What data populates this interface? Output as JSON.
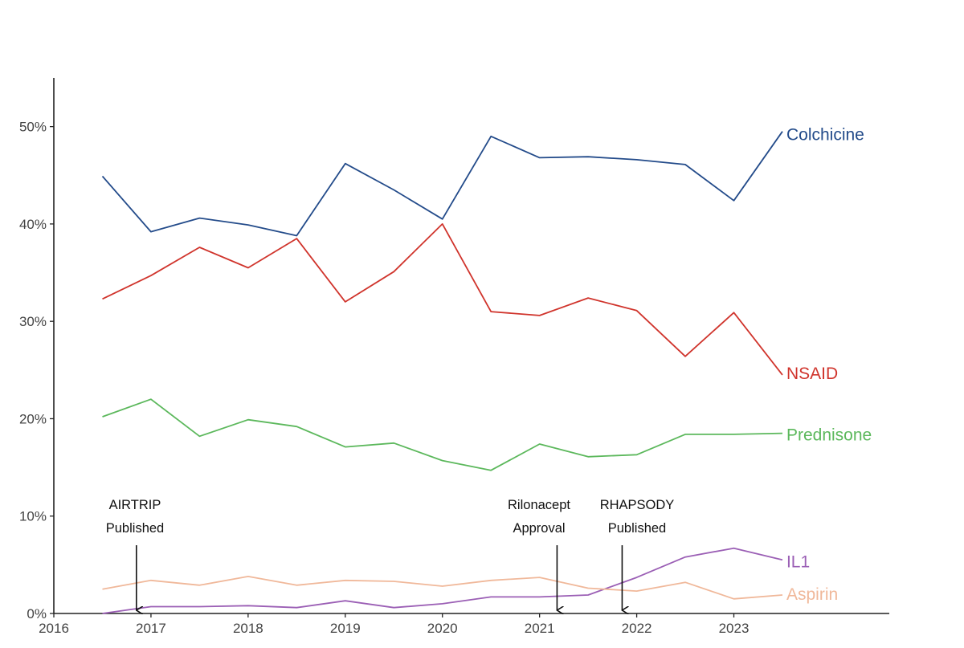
{
  "chart_data": {
    "type": "line",
    "title": "",
    "xlabel": "",
    "ylabel": "",
    "xlim": [
      2016,
      2024.6
    ],
    "ylim": [
      0,
      0.55
    ],
    "x_ticks": [
      2016,
      2017,
      2018,
      2019,
      2020,
      2021,
      2022,
      2023
    ],
    "x_tick_labels": [
      "2016",
      "2017",
      "2018",
      "2019",
      "2020",
      "2021",
      "2022",
      "2023"
    ],
    "y_ticks": [
      0,
      0.1,
      0.2,
      0.3,
      0.4,
      0.5
    ],
    "y_tick_labels": [
      "0%",
      "10%",
      "20%",
      "30%",
      "40%",
      "50%"
    ],
    "grid": false,
    "legend": "direct labels at right end of each line",
    "x": [
      2016.5,
      2017.0,
      2017.5,
      2018.0,
      2018.5,
      2019.0,
      2019.5,
      2020.0,
      2020.5,
      2021.0,
      2021.5,
      2022.0,
      2022.5,
      2023.0,
      2023.5
    ],
    "series": [
      {
        "name": "Colchicine",
        "color": "#234b8a",
        "values": [
          0.449,
          0.392,
          0.406,
          0.399,
          0.388,
          0.462,
          0.435,
          0.405,
          0.49,
          0.468,
          0.469,
          0.466,
          0.461,
          0.424,
          0.495
        ]
      },
      {
        "name": "NSAID",
        "color": "#d0342c",
        "values": [
          0.323,
          0.347,
          0.376,
          0.355,
          0.385,
          0.32,
          0.351,
          0.4,
          0.31,
          0.306,
          0.324,
          0.311,
          0.264,
          0.309,
          0.245
        ]
      },
      {
        "name": "Prednisone",
        "color": "#5cb85c",
        "values": [
          0.202,
          0.22,
          0.182,
          0.199,
          0.192,
          0.171,
          0.175,
          0.157,
          0.147,
          0.174,
          0.161,
          0.163,
          0.184,
          0.184,
          0.185
        ]
      },
      {
        "name": "IL1",
        "color": "#9b5fb5",
        "values": [
          0.0,
          0.007,
          0.007,
          0.008,
          0.006,
          0.013,
          0.006,
          0.01,
          0.017,
          0.017,
          0.019,
          0.037,
          0.058,
          0.067,
          0.055
        ]
      },
      {
        "name": "Aspirin",
        "color": "#f0b89a",
        "values": [
          0.025,
          0.034,
          0.029,
          0.038,
          0.029,
          0.034,
          0.033,
          0.028,
          0.034,
          0.037,
          0.026,
          0.023,
          0.032,
          0.015,
          0.019
        ]
      }
    ],
    "annotations": [
      {
        "label_lines": [
          "AIRTRIP",
          "Published"
        ],
        "x": 2016.85,
        "arrow_to_y": 0.0
      },
      {
        "label_lines": [
          "Rilonacept",
          "Approval"
        ],
        "x": 2021.18,
        "arrow_to_y": 0.0
      },
      {
        "label_lines": [
          "RHAPSODY",
          "Published"
        ],
        "x": 2021.85,
        "arrow_to_y": 0.0
      }
    ]
  }
}
